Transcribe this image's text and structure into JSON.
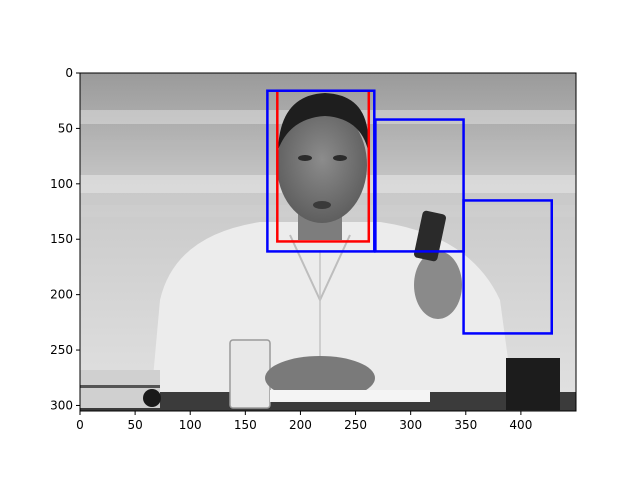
{
  "chart_data": {
    "type": "image-with-boxes",
    "title": "",
    "xlabel": "",
    "ylabel": "",
    "xlim": [
      0,
      450
    ],
    "ylim": [
      305,
      0
    ],
    "x_ticks": [
      "0",
      "50",
      "100",
      "150",
      "200",
      "250",
      "300",
      "350",
      "400"
    ],
    "y_ticks": [
      "0",
      "50",
      "100",
      "150",
      "200",
      "250",
      "300"
    ],
    "image": {
      "description": "grayscale photo",
      "width": 450,
      "height": 305
    },
    "boxes": [
      {
        "color": "#ff0000",
        "x0": 179,
        "y0": 16,
        "x1": 262,
        "y1": 152
      },
      {
        "color": "#0000ff",
        "x0": 170,
        "y0": 16,
        "x1": 267,
        "y1": 161
      },
      {
        "color": "#0000ff",
        "x0": 268,
        "y0": 42,
        "x1": 348,
        "y1": 161
      },
      {
        "color": "#0000ff",
        "x0": 348,
        "y0": 115,
        "x1": 428,
        "y1": 235
      }
    ]
  }
}
